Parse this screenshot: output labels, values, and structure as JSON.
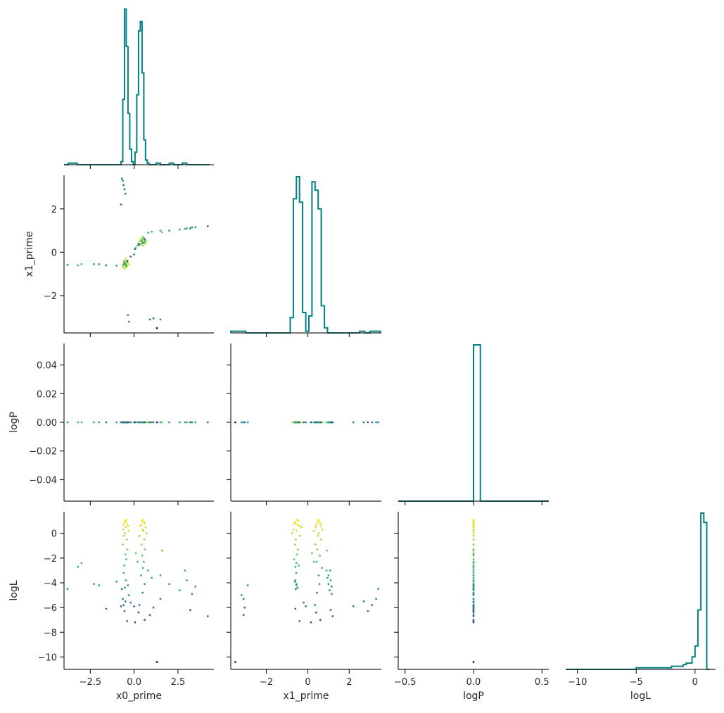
{
  "chart_data": {
    "type": "scatter",
    "layout": "corner-plot",
    "params": [
      "x0_prime",
      "x1_prime",
      "logP",
      "logL"
    ],
    "axis_labels": [
      "x0_prime",
      "x1_prime",
      "logP",
      "logL"
    ],
    "ranges": [
      [
        -4.0,
        4.55
      ],
      [
        -3.72,
        3.55
      ],
      [
        -0.55,
        0.55
      ],
      [
        -11.0,
        1.75
      ]
    ],
    "ticks": [
      {
        "values": [
          -2.5,
          0,
          2.5
        ],
        "labels": [
          "−2.5",
          "0.0",
          "2.5"
        ]
      },
      {
        "values": [
          -2,
          0,
          2
        ],
        "labels": [
          "−2",
          "0",
          "2"
        ]
      },
      {
        "values": [
          -0.5,
          0,
          0.5
        ],
        "labels": [
          "−0.5",
          "0.0",
          "0.5"
        ]
      },
      {
        "values": [
          -10,
          -5,
          0
        ],
        "labels": [
          "−10",
          "−5",
          "0"
        ]
      }
    ],
    "row_ticks": [
      null,
      {
        "values": [
          -2,
          0,
          2
        ],
        "labels": [
          "−2",
          "0",
          "2"
        ]
      },
      {
        "values": [
          -0.04,
          -0.02,
          0,
          0.02,
          0.04
        ],
        "labels": [
          "−0.04",
          "−0.02",
          "0.00",
          "0.02",
          "0.04"
        ]
      },
      {
        "values": [
          -10,
          -8,
          -6,
          -4,
          -2,
          0
        ],
        "labels": [
          "−10",
          "−8",
          "−6",
          "−4",
          "−2",
          "0"
        ]
      }
    ],
    "row_ranges": [
      null,
      [
        -3.72,
        3.55
      ],
      [
        -0.055,
        0.055
      ],
      [
        -11.0,
        1.75
      ]
    ],
    "color_by": "logL",
    "colormap": [
      "#440154",
      "#3b528b",
      "#21918c",
      "#5ec962",
      "#fde725"
    ],
    "color_range": [
      -10.5,
      1.2
    ],
    "histogram_color": "#008080",
    "grid": false,
    "histograms": [
      {
        "param": "x0_prime",
        "bins": [
          -4.0,
          -3.75,
          -3.5,
          -3.25,
          -3.0,
          -2.75,
          -2.5,
          -2.25,
          -2.0,
          -1.75,
          -1.5,
          -1.25,
          -1.0,
          -0.85,
          -0.75,
          -0.65,
          -0.55,
          -0.45,
          -0.35,
          -0.25,
          -0.15,
          -0.05,
          0.05,
          0.15,
          0.25,
          0.35,
          0.45,
          0.55,
          0.65,
          0.75,
          0.85,
          1.0,
          1.25,
          1.5,
          1.75,
          2.0,
          2.25,
          2.5,
          2.75,
          3.0,
          3.25,
          3.5,
          3.75,
          4.0,
          4.3
        ],
        "counts": [
          0,
          1,
          1,
          0,
          0,
          0,
          0,
          0,
          0,
          0,
          0,
          0,
          0,
          0,
          2,
          42,
          100,
          76,
          33,
          10,
          2,
          0,
          8,
          45,
          86,
          92,
          59,
          16,
          3,
          1,
          0,
          0,
          1,
          0,
          0,
          1,
          0,
          0,
          1,
          0,
          0,
          0,
          0,
          0
        ]
      },
      {
        "param": "x1_prime",
        "bins": [
          -3.72,
          -3.5,
          -3.25,
          -3.0,
          -2.75,
          -2.5,
          -2.25,
          -2.0,
          -1.75,
          -1.5,
          -1.25,
          -1.0,
          -0.85,
          -0.7,
          -0.55,
          -0.4,
          -0.25,
          -0.1,
          0.05,
          0.2,
          0.35,
          0.5,
          0.65,
          0.8,
          0.95,
          1.1,
          1.25,
          1.5,
          1.75,
          2.0,
          2.25,
          2.5,
          2.75,
          3.0,
          3.25,
          3.5
        ],
        "counts": [
          1,
          1,
          1,
          0,
          0,
          0,
          0,
          0,
          0,
          0,
          0,
          0,
          9,
          79,
          92,
          77,
          12,
          1,
          10,
          89,
          84,
          73,
          16,
          3,
          0,
          0,
          0,
          0,
          0,
          0,
          0,
          1,
          0,
          1,
          1
        ]
      },
      {
        "param": "logP",
        "bins": [
          -0.55,
          -0.45,
          -0.35,
          -0.25,
          -0.15,
          -0.05,
          0.0,
          0.05,
          0.15,
          0.25,
          0.35,
          0.45,
          0.55
        ],
        "counts": [
          0,
          0,
          0,
          0,
          0,
          0,
          100,
          0,
          0,
          0,
          0,
          0
        ]
      },
      {
        "param": "logL",
        "bins": [
          -11.0,
          -10.5,
          -10.0,
          -9.5,
          -9.0,
          -8.5,
          -8.0,
          -7.5,
          -7.0,
          -6.5,
          -6.0,
          -5.5,
          -5.0,
          -4.5,
          -4.0,
          -3.5,
          -3.0,
          -2.5,
          -2.0,
          -1.5,
          -1.0,
          -0.75,
          -0.5,
          -0.25,
          0.0,
          0.25,
          0.5,
          0.75,
          1.0,
          1.25
        ],
        "counts": [
          0,
          0,
          0,
          0,
          0,
          0,
          0,
          0,
          0,
          0,
          0,
          0,
          1,
          1,
          1,
          1,
          1,
          1,
          2,
          2,
          3,
          4,
          4,
          8,
          15,
          38,
          100,
          94,
          0
        ]
      }
    ],
    "scatter_points": [
      [
        -0.45,
        -0.52,
        0,
        1.1
      ],
      [
        -0.5,
        -0.45,
        0,
        1.0
      ],
      [
        -0.55,
        -0.6,
        0,
        0.9
      ],
      [
        -0.4,
        -0.65,
        0,
        0.8
      ],
      [
        -0.6,
        -0.5,
        0,
        0.7
      ],
      [
        -0.35,
        -0.4,
        0,
        0.6
      ],
      [
        -0.48,
        -0.3,
        0,
        0.5
      ],
      [
        -0.62,
        -0.7,
        0,
        0.3
      ],
      [
        -0.3,
        -0.55,
        0,
        0.2
      ],
      [
        -0.52,
        -0.75,
        0,
        0.0
      ],
      [
        -0.58,
        -0.38,
        0,
        -0.2
      ],
      [
        -0.42,
        -0.58,
        0,
        -0.5
      ],
      [
        -0.65,
        -0.62,
        0,
        -0.9
      ],
      [
        -0.38,
        -0.48,
        0,
        -1.3
      ],
      [
        -0.5,
        -0.52,
        0,
        -1.7
      ],
      [
        -0.45,
        -0.66,
        0,
        -2.1
      ],
      [
        -0.56,
        -0.44,
        0,
        -2.6
      ],
      [
        -0.6,
        -0.56,
        0,
        -3.2
      ],
      [
        -0.47,
        -0.6,
        0,
        -3.8
      ],
      [
        -0.53,
        -0.5,
        0,
        -4.4
      ],
      [
        0.5,
        0.5,
        0,
        1.1
      ],
      [
        0.45,
        0.55,
        0,
        1.0
      ],
      [
        0.55,
        0.45,
        0,
        0.9
      ],
      [
        0.6,
        0.6,
        0,
        0.8
      ],
      [
        0.4,
        0.4,
        0,
        0.7
      ],
      [
        0.35,
        0.62,
        0,
        0.6
      ],
      [
        0.65,
        0.38,
        0,
        0.5
      ],
      [
        0.48,
        0.7,
        0,
        0.3
      ],
      [
        0.52,
        0.3,
        0,
        0.2
      ],
      [
        0.7,
        0.52,
        0,
        0.0
      ],
      [
        0.3,
        0.5,
        0,
        -0.2
      ],
      [
        0.58,
        0.64,
        0,
        -0.5
      ],
      [
        0.42,
        0.36,
        0,
        -0.9
      ],
      [
        0.62,
        0.46,
        0,
        -1.3
      ],
      [
        0.46,
        0.58,
        0,
        -1.8
      ],
      [
        0.55,
        0.42,
        0,
        -2.3
      ],
      [
        0.5,
        0.68,
        0,
        -2.8
      ],
      [
        0.4,
        0.52,
        0,
        -3.4
      ],
      [
        0.6,
        0.56,
        0,
        -4.1
      ],
      [
        0.48,
        0.44,
        0,
        -4.8
      ],
      [
        -0.7,
        3.4,
        0,
        -4.5
      ],
      [
        -0.65,
        3.3,
        0,
        -5.3
      ],
      [
        -0.6,
        3.1,
        0,
        -5.8
      ],
      [
        -0.55,
        2.9,
        0,
        -6.3
      ],
      [
        -0.5,
        2.7,
        0,
        -5.5
      ],
      [
        -0.75,
        2.2,
        0,
        -5.9
      ],
      [
        -0.35,
        -2.9,
        0,
        -4.2
      ],
      [
        -0.3,
        -3.2,
        0,
        -5.0
      ],
      [
        0.9,
        -3.1,
        0,
        -6.6
      ],
      [
        1.1,
        -3.05,
        0,
        -6.0
      ],
      [
        1.3,
        -3.5,
        0,
        -10.4
      ],
      [
        1.5,
        -3.1,
        0,
        -5.3
      ],
      [
        0.8,
        0.9,
        0,
        -3.0
      ],
      [
        1.0,
        0.95,
        0,
        -3.6
      ],
      [
        1.5,
        1.0,
        0,
        -3.4
      ],
      [
        2.0,
        1.0,
        0,
        -4.1
      ],
      [
        2.6,
        1.05,
        0,
        -4.6
      ],
      [
        3.0,
        1.1,
        0,
        -3.8
      ],
      [
        3.3,
        1.15,
        0,
        -4.9
      ],
      [
        3.5,
        1.15,
        0,
        -4.3
      ],
      [
        4.2,
        1.2,
        0,
        -6.7
      ],
      [
        -1.6,
        -0.6,
        0,
        -6.1
      ],
      [
        -2.3,
        -0.55,
        0,
        -4.1
      ],
      [
        -3.0,
        -0.55,
        0,
        -2.4
      ],
      [
        -3.2,
        -0.6,
        0,
        -2.7
      ],
      [
        -3.8,
        -0.58,
        0,
        -4.5
      ],
      [
        -2.0,
        -0.55,
        0,
        -4.2
      ],
      [
        -1.0,
        -0.62,
        0,
        -3.9
      ],
      [
        0.1,
        0.2,
        0,
        -1.6
      ],
      [
        0.2,
        0.3,
        0,
        -2.3
      ],
      [
        0.3,
        0.35,
        0,
        -5.8
      ],
      [
        0.25,
        0.4,
        0,
        -6.4
      ],
      [
        -0.2,
        -0.2,
        0,
        -5.6
      ],
      [
        0.0,
        -0.1,
        0,
        -5.9
      ],
      [
        0.05,
        0.15,
        0,
        -7.2
      ],
      [
        1.6,
        0.92,
        0,
        -1.4
      ],
      [
        2.9,
        1.08,
        0,
        -3.0
      ],
      [
        3.2,
        1.1,
        0,
        -6.2
      ],
      [
        -0.4,
        -0.4,
        0,
        -7.1
      ],
      [
        0.6,
        0.6,
        0,
        -7.0
      ]
    ]
  }
}
